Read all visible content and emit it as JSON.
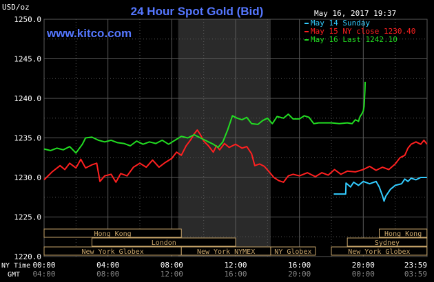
{
  "chart_data": {
    "type": "line",
    "title": "24 Hour Spot Gold (Bid)",
    "subtitle": "www.kitco.com",
    "ylabel": "USD/oz",
    "timestamp": "May 16, 2017 19:37",
    "ylim": [
      1220,
      1250
    ],
    "xlim": [
      0,
      24
    ],
    "y_ticks": [
      "1220.0",
      "1225.0",
      "1230.0",
      "1235.0",
      "1240.0",
      "1245.0",
      "1250.0"
    ],
    "x_ticks_ny": [
      "00:00",
      "04:00",
      "08:00",
      "12:00",
      "16:00",
      "20:00",
      "23:59"
    ],
    "x_ticks_gmt": [
      "04:00",
      "08:00",
      "12:00",
      "16:00",
      "20:00",
      "00:00",
      "03:59"
    ],
    "row_label_ny": "NY Time",
    "row_label_gmt": "GMT",
    "grid": true,
    "legend_position": "top-right",
    "shaded_period": [
      8.4,
      14.2
    ],
    "series": [
      {
        "name": "May 14 Sunday",
        "color": "#33ccff",
        "points": [
          [
            18.15,
            1227.9
          ],
          [
            18.9,
            1227.9
          ],
          [
            18.92,
            1229.3
          ],
          [
            19.2,
            1228.8
          ],
          [
            19.4,
            1229.4
          ],
          [
            19.7,
            1229.0
          ],
          [
            20.0,
            1229.5
          ],
          [
            20.4,
            1229.2
          ],
          [
            20.8,
            1229.5
          ],
          [
            21.0,
            1228.8
          ],
          [
            21.2,
            1227.7
          ],
          [
            21.3,
            1227.0
          ],
          [
            21.4,
            1227.6
          ],
          [
            21.7,
            1228.5
          ],
          [
            22.0,
            1229.0
          ],
          [
            22.4,
            1229.2
          ],
          [
            22.6,
            1229.8
          ],
          [
            22.8,
            1229.5
          ],
          [
            23.0,
            1229.9
          ],
          [
            23.3,
            1229.7
          ],
          [
            23.6,
            1230.0
          ],
          [
            23.99,
            1230.0
          ]
        ]
      },
      {
        "name": "May 15 NY close 1230.40",
        "color": "#ff2020",
        "points": [
          [
            0.0,
            1229.7
          ],
          [
            0.5,
            1230.7
          ],
          [
            1.0,
            1231.5
          ],
          [
            1.3,
            1231.0
          ],
          [
            1.6,
            1231.8
          ],
          [
            2.0,
            1231.2
          ],
          [
            2.3,
            1232.3
          ],
          [
            2.6,
            1231.2
          ],
          [
            3.0,
            1231.6
          ],
          [
            3.3,
            1231.8
          ],
          [
            3.5,
            1229.5
          ],
          [
            3.8,
            1230.2
          ],
          [
            4.2,
            1230.4
          ],
          [
            4.5,
            1229.4
          ],
          [
            4.8,
            1230.5
          ],
          [
            5.2,
            1230.2
          ],
          [
            5.6,
            1231.3
          ],
          [
            6.0,
            1231.8
          ],
          [
            6.4,
            1231.3
          ],
          [
            6.8,
            1232.2
          ],
          [
            7.2,
            1231.3
          ],
          [
            7.6,
            1231.9
          ],
          [
            8.0,
            1232.4
          ],
          [
            8.3,
            1233.2
          ],
          [
            8.6,
            1232.8
          ],
          [
            8.9,
            1234.0
          ],
          [
            9.2,
            1234.8
          ],
          [
            9.4,
            1235.5
          ],
          [
            9.6,
            1236.0
          ],
          [
            9.8,
            1235.4
          ],
          [
            10.0,
            1234.6
          ],
          [
            10.3,
            1234.0
          ],
          [
            10.6,
            1233.2
          ],
          [
            10.8,
            1234.0
          ],
          [
            11.0,
            1233.5
          ],
          [
            11.3,
            1234.3
          ],
          [
            11.6,
            1233.8
          ],
          [
            12.0,
            1234.2
          ],
          [
            12.4,
            1233.7
          ],
          [
            12.7,
            1233.9
          ],
          [
            13.0,
            1233.0
          ],
          [
            13.2,
            1231.5
          ],
          [
            13.5,
            1231.7
          ],
          [
            13.8,
            1231.4
          ],
          [
            14.1,
            1230.7
          ],
          [
            14.4,
            1230.0
          ],
          [
            14.7,
            1229.6
          ],
          [
            15.0,
            1229.4
          ],
          [
            15.3,
            1230.2
          ],
          [
            15.6,
            1230.4
          ],
          [
            16.0,
            1230.2
          ],
          [
            16.5,
            1230.6
          ],
          [
            17.0,
            1230.1
          ],
          [
            17.4,
            1230.6
          ],
          [
            17.8,
            1230.3
          ],
          [
            18.2,
            1231.0
          ],
          [
            18.6,
            1230.4
          ],
          [
            19.0,
            1230.8
          ],
          [
            19.5,
            1230.7
          ],
          [
            20.0,
            1231.0
          ],
          [
            20.4,
            1231.4
          ],
          [
            20.8,
            1230.9
          ],
          [
            21.2,
            1231.3
          ],
          [
            21.6,
            1231.0
          ],
          [
            22.0,
            1231.7
          ],
          [
            22.3,
            1232.5
          ],
          [
            22.6,
            1232.8
          ],
          [
            22.8,
            1233.7
          ],
          [
            23.0,
            1234.2
          ],
          [
            23.3,
            1234.5
          ],
          [
            23.6,
            1234.2
          ],
          [
            23.8,
            1234.7
          ],
          [
            23.99,
            1234.2
          ]
        ]
      },
      {
        "name": "May 16 Last 1242.10",
        "color": "#22dd22",
        "points": [
          [
            0.0,
            1233.6
          ],
          [
            0.4,
            1233.4
          ],
          [
            0.8,
            1233.7
          ],
          [
            1.2,
            1233.5
          ],
          [
            1.6,
            1233.9
          ],
          [
            2.0,
            1233.1
          ],
          [
            2.4,
            1234.2
          ],
          [
            2.6,
            1235.0
          ],
          [
            3.0,
            1235.1
          ],
          [
            3.4,
            1234.7
          ],
          [
            3.8,
            1234.5
          ],
          [
            4.2,
            1234.7
          ],
          [
            4.6,
            1234.4
          ],
          [
            5.0,
            1234.3
          ],
          [
            5.4,
            1234.0
          ],
          [
            5.8,
            1234.6
          ],
          [
            6.2,
            1234.2
          ],
          [
            6.6,
            1234.5
          ],
          [
            7.0,
            1234.3
          ],
          [
            7.4,
            1234.7
          ],
          [
            7.8,
            1234.2
          ],
          [
            8.2,
            1234.7
          ],
          [
            8.6,
            1235.2
          ],
          [
            9.0,
            1235.0
          ],
          [
            9.4,
            1235.4
          ],
          [
            9.8,
            1235.0
          ],
          [
            10.2,
            1234.6
          ],
          [
            10.6,
            1234.2
          ],
          [
            10.9,
            1233.8
          ],
          [
            11.2,
            1234.5
          ],
          [
            11.5,
            1236.0
          ],
          [
            11.8,
            1237.8
          ],
          [
            12.1,
            1237.5
          ],
          [
            12.4,
            1237.3
          ],
          [
            12.7,
            1237.6
          ],
          [
            13.0,
            1236.8
          ],
          [
            13.4,
            1236.7
          ],
          [
            13.7,
            1237.2
          ],
          [
            14.0,
            1237.5
          ],
          [
            14.3,
            1236.8
          ],
          [
            14.6,
            1237.7
          ],
          [
            15.0,
            1237.5
          ],
          [
            15.3,
            1238.0
          ],
          [
            15.6,
            1237.4
          ],
          [
            16.0,
            1237.4
          ],
          [
            16.3,
            1237.8
          ],
          [
            16.6,
            1237.6
          ],
          [
            16.9,
            1236.8
          ],
          [
            17.2,
            1236.9
          ],
          [
            17.6,
            1236.9
          ],
          [
            18.0,
            1236.9
          ],
          [
            18.5,
            1236.8
          ],
          [
            19.0,
            1236.9
          ],
          [
            19.3,
            1236.8
          ],
          [
            19.5,
            1237.3
          ],
          [
            19.7,
            1237.1
          ],
          [
            19.8,
            1237.7
          ],
          [
            19.9,
            1238.0
          ],
          [
            20.0,
            1238.4
          ],
          [
            20.05,
            1239.0
          ],
          [
            20.1,
            1241.0
          ],
          [
            20.12,
            1242.1
          ]
        ]
      }
    ],
    "market_sessions": [
      {
        "label": "Hong Kong",
        "start": 0.0,
        "end": 8.6,
        "row": 1
      },
      {
        "label": "Hong Kong",
        "start": 21.0,
        "end": 23.99,
        "row": 1
      },
      {
        "label": "London",
        "start": 3.0,
        "end": 12.0,
        "row": 2
      },
      {
        "label": "Sydney",
        "start": 19.0,
        "end": 23.99,
        "row": 2
      },
      {
        "label": "New York Globex",
        "start": 0.0,
        "end": 8.6,
        "row": 3
      },
      {
        "label": "New York NYMEX",
        "start": 8.6,
        "end": 14.2,
        "row": 3
      },
      {
        "label": "NY Globex",
        "start": 14.2,
        "end": 17.0,
        "row": 3
      },
      {
        "label": "New York Globex",
        "start": 18.0,
        "end": 23.99,
        "row": 3
      }
    ]
  }
}
